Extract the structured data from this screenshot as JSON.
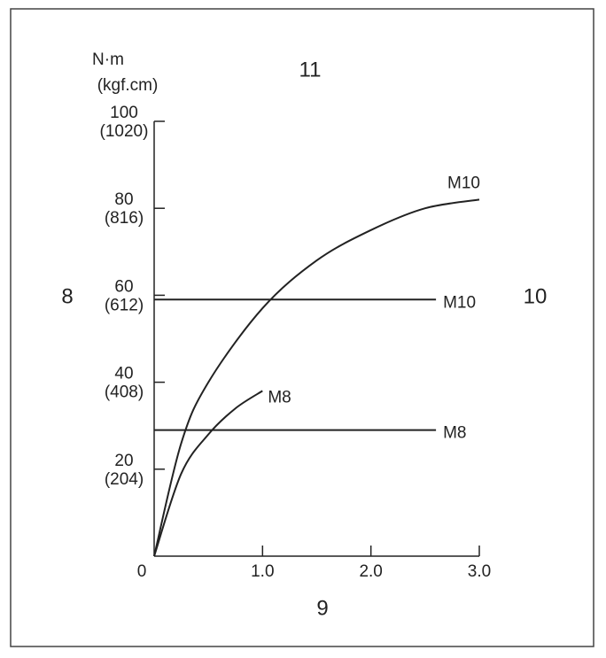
{
  "chart_data": {
    "type": "line",
    "annotations": [
      "11",
      "8",
      "10",
      "9"
    ],
    "y_unit_label": "N·m",
    "y_unit_label_2": "(kgf.cm)",
    "xlim": [
      0,
      3
    ],
    "ylim": [
      0,
      100
    ],
    "xticks": [
      0,
      {
        "value": 1,
        "label": "1.0"
      },
      {
        "value": 2,
        "label": "2.0"
      },
      {
        "value": 3,
        "label": "3.0"
      }
    ],
    "yticks": [
      20,
      40,
      60,
      80,
      100
    ],
    "yticks_kgf": [
      "(204)",
      "(408)",
      "(612)",
      "(816)",
      "(1020)"
    ],
    "series": [
      {
        "name": "M10",
        "color": "#222222",
        "x": [
          0,
          0.25,
          0.5,
          1,
          1.5,
          2,
          2.5,
          3
        ],
        "values": [
          0,
          26,
          40,
          57,
          68,
          75,
          80,
          82
        ]
      },
      {
        "name": "M10",
        "color": "#222222",
        "x": [
          0,
          2.6
        ],
        "values": [
          59,
          59
        ]
      },
      {
        "name": "M8",
        "color": "#222222",
        "x": [
          0,
          0.25,
          0.5,
          0.75,
          1
        ],
        "values": [
          0,
          19,
          28,
          34,
          38
        ]
      },
      {
        "name": "M8",
        "color": "#222222",
        "x": [
          0,
          2.6
        ],
        "values": [
          29,
          29
        ]
      }
    ]
  }
}
